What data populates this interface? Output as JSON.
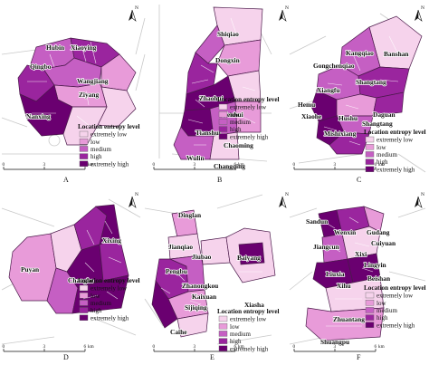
{
  "colors": {
    "extremely_low": "#f6d3ec",
    "low": "#e89bd9",
    "medium": "#c55fc3",
    "high": "#9a259e",
    "extremely_high": "#6a0070",
    "outside": "#ffffff"
  },
  "legend_title": "Location entropy level",
  "legend_items": [
    "extremely low",
    "low",
    "medium",
    "high",
    "extremely high"
  ],
  "north_label": "N",
  "scale_unit": "km",
  "scale_labels": [
    "0",
    "3",
    "6"
  ],
  "panels": [
    {
      "letter": "A",
      "places": [
        "Hubin",
        "Xiaoying",
        "Qingbo",
        "Wangjiang",
        "Ziyang",
        "Nanxing"
      ]
    },
    {
      "letter": "B",
      "places": [
        "Shiqiao",
        "Dongxin",
        "Zhaohui",
        "Wenhui",
        "Tianshui",
        "Chaoming",
        "Wulin",
        "Changqing"
      ]
    },
    {
      "letter": "C",
      "places": [
        "Banshan",
        "Kangqiao",
        "Gongchenqiao",
        "Shangtang",
        "Xiangfu",
        "Hemu",
        "Daguan",
        "Xiaohe",
        "Hushu",
        "Shangtang",
        "Mishixiang"
      ]
    },
    {
      "letter": "D",
      "places": [
        "Xixing",
        "Puyan",
        "Changhe"
      ]
    },
    {
      "letter": "E",
      "places": [
        "Dinglan",
        "Jianqiao",
        "Jiubao",
        "Pengbu",
        "Zhanongkou",
        "Baiyang",
        "Kaixuan",
        "Sijiqing",
        "Xiasha",
        "Caihe"
      ]
    },
    {
      "letter": "F",
      "places": [
        "Sandun",
        "Wenxin",
        "Gudang",
        "Cuiyuan",
        "Jiangcun",
        "Xixi",
        "Lingyin",
        "Beishan",
        "Liuxia",
        "Xihu",
        "Zhuantang",
        "Shuangpu"
      ]
    }
  ]
}
